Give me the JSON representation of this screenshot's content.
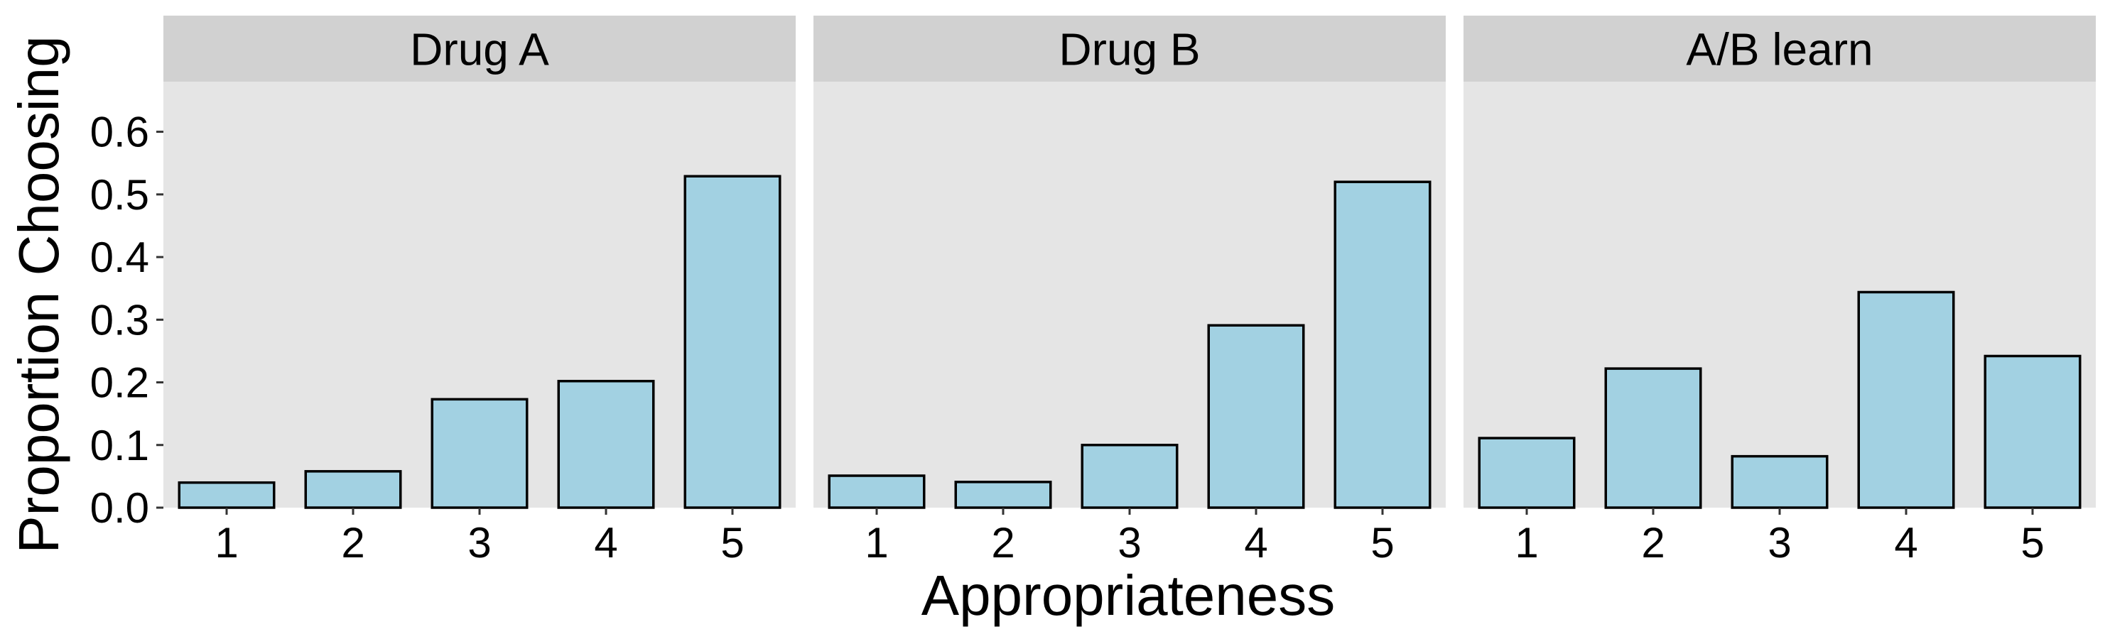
{
  "chart_data": {
    "type": "bar",
    "layout": "faceted",
    "xlabel": "Appropriateness",
    "ylabel": "Proportion Choosing",
    "ylim": [
      0,
      0.68
    ],
    "yticks": [
      "0.0",
      "0.1",
      "0.2",
      "0.3",
      "0.4",
      "0.5",
      "0.6"
    ],
    "ytick_values": [
      0,
      0.1,
      0.2,
      0.3,
      0.4,
      0.5,
      0.6
    ],
    "categories": [
      "1",
      "2",
      "3",
      "4",
      "5"
    ],
    "grid": false,
    "bar_color": "#a2d1e2",
    "bar_stroke": "#000000",
    "panel_background": "#e5e5e5",
    "strip_background": "#d1d1d1",
    "panels": [
      {
        "title": "Drug A",
        "values": [
          0.04,
          0.058,
          0.173,
          0.202,
          0.529
        ]
      },
      {
        "title": "Drug B",
        "values": [
          0.051,
          0.041,
          0.1,
          0.291,
          0.52
        ]
      },
      {
        "title": "A/B learn",
        "values": [
          0.111,
          0.222,
          0.082,
          0.344,
          0.242
        ]
      }
    ]
  }
}
